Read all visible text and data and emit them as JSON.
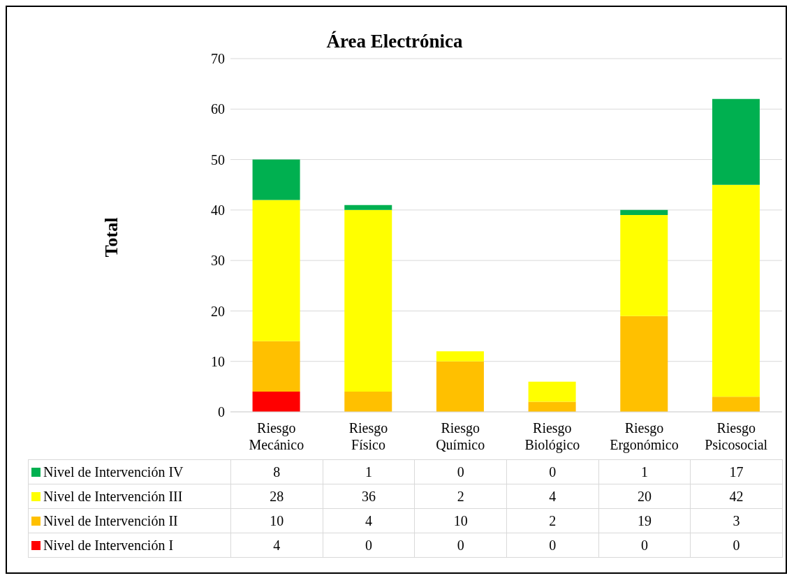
{
  "chart_data": {
    "type": "bar",
    "title": "Área Electrónica",
    "ylabel": "Total",
    "stacked": true,
    "categories": [
      "Riesgo Mecánico",
      "Riesgo Físico",
      "Riesgo Químico",
      "Riesgo Biológico",
      "Riesgo Ergonómico",
      "Riesgo Psicosocial"
    ],
    "series": [
      {
        "name": "Nivel de Intervención I",
        "color": "#ff0000",
        "values": [
          4,
          0,
          0,
          0,
          0,
          0
        ]
      },
      {
        "name": "Nivel de Intervención II",
        "color": "#ffc000",
        "values": [
          10,
          4,
          10,
          2,
          19,
          3
        ]
      },
      {
        "name": "Nivel de Intervención III",
        "color": "#ffff00",
        "values": [
          28,
          36,
          2,
          4,
          20,
          42
        ]
      },
      {
        "name": "Nivel de Intervención IV",
        "color": "#00b050",
        "values": [
          8,
          1,
          0,
          0,
          1,
          17
        ]
      }
    ],
    "ylim": [
      0,
      70
    ],
    "yticks": [
      0,
      10,
      20,
      30,
      40,
      50,
      60,
      70
    ],
    "grid": "y",
    "legend": "bottom",
    "data_labels": true
  }
}
